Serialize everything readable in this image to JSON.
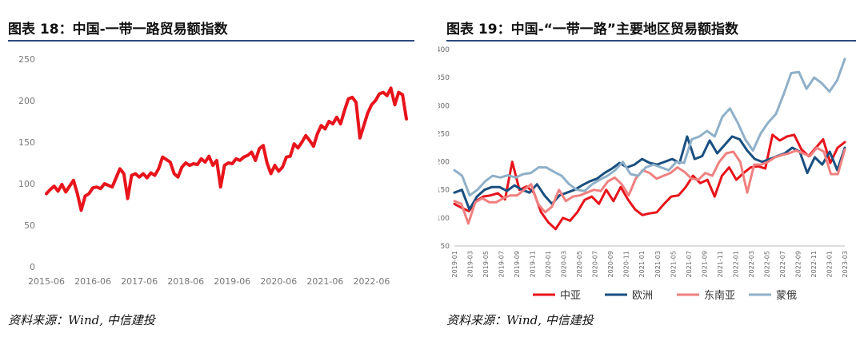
{
  "figures": [
    {
      "title": "图表 18：中国-一带一路贸易额指数",
      "source": "资料来源：Wind, 中信建投"
    },
    {
      "title": "图表 19：中国-“一带一路”主要地区贸易额指数",
      "source": "资料来源：Wind, 中信建投"
    }
  ],
  "colors": {
    "title_rule": "#2b4c7e"
  },
  "chart_data": [
    {
      "type": "line",
      "title": "",
      "xlabel": "",
      "ylabel": "",
      "ylim": [
        0,
        250
      ],
      "y_ticks": [
        "0",
        "50",
        "100",
        "150",
        "200",
        "250"
      ],
      "x_ticks": [
        "2015-06",
        "2016-06",
        "2017-06",
        "2018-06",
        "2019-06",
        "2020-06",
        "2021-06",
        "2022-06"
      ],
      "x_tick_index": [
        0,
        12,
        24,
        36,
        48,
        60,
        72,
        84
      ],
      "grid": false,
      "series": [
        {
          "color": "#e8141c",
          "values": [
            88,
            93,
            97,
            91,
            99,
            90,
            97,
            104,
            88,
            68,
            85,
            88,
            95,
            96,
            94,
            100,
            98,
            96,
            107,
            118,
            112,
            82,
            110,
            112,
            108,
            112,
            107,
            113,
            110,
            118,
            132,
            129,
            126,
            112,
            108,
            120,
            125,
            122,
            124,
            123,
            130,
            126,
            133,
            122,
            128,
            96,
            122,
            125,
            124,
            130,
            128,
            132,
            134,
            138,
            128,
            142,
            146,
            125,
            112,
            122,
            115,
            120,
            132,
            133,
            148,
            143,
            150,
            158,
            152,
            145,
            160,
            170,
            166,
            175,
            172,
            180,
            172,
            188,
            202,
            204,
            198,
            155,
            170,
            185,
            195,
            200,
            208,
            210,
            206,
            215,
            195,
            210,
            207,
            178
          ]
        }
      ]
    },
    {
      "type": "line",
      "title": "",
      "xlabel": "",
      "ylabel": "",
      "ylim": [
        50,
        400
      ],
      "y_ticks": [
        "50",
        "100",
        "150",
        "200",
        "250",
        "300",
        "350",
        "400"
      ],
      "x_ticks": [
        "2019-01",
        "2019-03",
        "2019-05",
        "2019-07",
        "2019-09",
        "2019-11",
        "2020-01",
        "2020-03",
        "2020-05",
        "2020-07",
        "2020-09",
        "2020-11",
        "2021-01",
        "2021-03",
        "2021-05",
        "2021-07",
        "2021-09",
        "2021-11",
        "2022-01",
        "2022-03",
        "2022-05",
        "2022-07",
        "2022-09",
        "2022-11",
        "2023-01",
        "2023-03"
      ],
      "legend_position": "bottom",
      "grid": false,
      "series": [
        {
          "name": "中亚",
          "color": "#e8141c",
          "values": [
            125,
            118,
            112,
            130,
            138,
            140,
            144,
            133,
            200,
            150,
            156,
            145,
            110,
            92,
            80,
            100,
            95,
            110,
            132,
            138,
            125,
            150,
            130,
            155,
            133,
            115,
            105,
            108,
            110,
            125,
            138,
            140,
            155,
            175,
            162,
            168,
            138,
            175,
            190,
            168,
            180,
            190,
            192,
            188,
            248,
            238,
            245,
            248,
            222,
            210,
            225,
            240,
            198,
            225,
            235
          ]
        },
        {
          "name": "欧洲",
          "color": "#1a4f80",
          "values": [
            145,
            150,
            115,
            138,
            150,
            155,
            155,
            148,
            158,
            150,
            145,
            160,
            140,
            125,
            140,
            145,
            150,
            158,
            165,
            170,
            180,
            188,
            198,
            190,
            195,
            205,
            198,
            195,
            200,
            205,
            198,
            245,
            205,
            210,
            238,
            215,
            230,
            245,
            240,
            220,
            205,
            200,
            205,
            210,
            215,
            225,
            218,
            180,
            208,
            195,
            218,
            185,
            225
          ]
        },
        {
          "name": "东南亚",
          "color": "#f08080",
          "values": [
            130,
            125,
            90,
            128,
            135,
            128,
            128,
            135,
            140,
            140,
            150,
            160,
            125,
            110,
            120,
            150,
            130,
            138,
            140,
            145,
            150,
            148,
            165,
            172,
            160,
            140,
            170,
            185,
            180,
            170,
            175,
            180,
            190,
            182,
            170,
            168,
            180,
            175,
            200,
            215,
            218,
            200,
            145,
            195,
            195,
            200,
            208,
            212,
            215,
            220,
            215,
            210,
            225,
            218,
            178,
            178,
            222
          ]
        },
        {
          "name": "蒙俄",
          "color": "#8fb0c8",
          "values": [
            185,
            175,
            140,
            150,
            165,
            175,
            172,
            176,
            172,
            178,
            180,
            190,
            190,
            182,
            175,
            160,
            150,
            148,
            160,
            168,
            175,
            185,
            200,
            178,
            175,
            190,
            195,
            190,
            185,
            200,
            198,
            240,
            245,
            255,
            245,
            280,
            295,
            270,
            240,
            220,
            250,
            270,
            285,
            320,
            358,
            360,
            330,
            350,
            340,
            325,
            345,
            383
          ]
        }
      ]
    }
  ]
}
